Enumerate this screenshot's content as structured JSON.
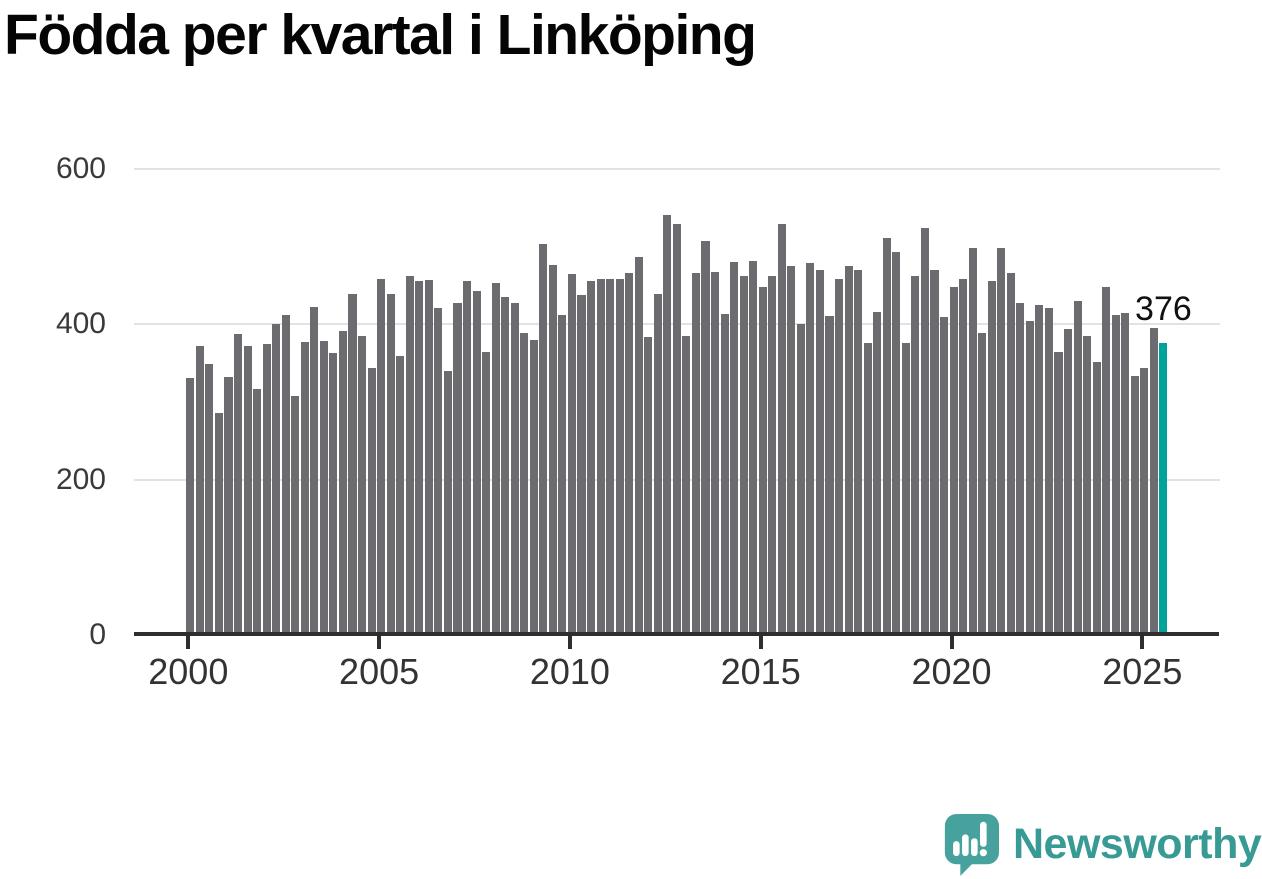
{
  "title": "Födda per kvartal i Linköping",
  "chart_data": {
    "type": "bar",
    "title": "Födda per kvartal i Linköping",
    "xlabel": "",
    "ylabel": "",
    "ylim": [
      0,
      620
    ],
    "grid": "horizontal-lines-at-200-400-600",
    "legend": "none",
    "bar_color": "#6b6b70",
    "highlight_color": "#00a39c",
    "x_tick_labels": [
      "2000",
      "2005",
      "2010",
      "2015",
      "2020",
      "2025"
    ],
    "y_tick_labels": [
      "0",
      "200",
      "400",
      "600"
    ],
    "annotation": {
      "text": "376",
      "quarter": "2025-Q3"
    },
    "series_by_year": [
      {
        "year": 2000,
        "values": [
          331,
          372,
          348,
          286
        ]
      },
      {
        "year": 2001,
        "values": [
          332,
          387,
          372,
          316
        ]
      },
      {
        "year": 2002,
        "values": [
          374,
          400,
          412,
          308
        ]
      },
      {
        "year": 2003,
        "values": [
          377,
          422,
          378,
          363
        ]
      },
      {
        "year": 2004,
        "values": [
          391,
          439,
          384,
          344
        ]
      },
      {
        "year": 2005,
        "values": [
          458,
          438,
          359,
          462
        ]
      },
      {
        "year": 2006,
        "values": [
          455,
          457,
          420,
          339
        ]
      },
      {
        "year": 2007,
        "values": [
          427,
          455,
          443,
          364
        ]
      },
      {
        "year": 2008,
        "values": [
          453,
          435,
          427,
          388
        ]
      },
      {
        "year": 2009,
        "values": [
          380,
          503,
          476,
          412
        ]
      },
      {
        "year": 2010,
        "values": [
          464,
          437,
          455,
          458
        ]
      },
      {
        "year": 2011,
        "values": [
          458,
          458,
          466,
          486
        ]
      },
      {
        "year": 2012,
        "values": [
          383,
          438,
          540,
          529
        ]
      },
      {
        "year": 2013,
        "values": [
          384,
          466,
          507,
          467
        ]
      },
      {
        "year": 2014,
        "values": [
          413,
          480,
          462,
          481
        ]
      },
      {
        "year": 2015,
        "values": [
          447,
          462,
          528,
          475
        ]
      },
      {
        "year": 2016,
        "values": [
          400,
          478,
          470,
          410
        ]
      },
      {
        "year": 2017,
        "values": [
          458,
          475,
          469,
          375
        ]
      },
      {
        "year": 2018,
        "values": [
          415,
          511,
          493,
          375
        ]
      },
      {
        "year": 2019,
        "values": [
          462,
          524,
          469,
          409
        ]
      },
      {
        "year": 2020,
        "values": [
          447,
          458,
          498,
          388
        ]
      },
      {
        "year": 2021,
        "values": [
          455,
          498,
          466,
          427
        ]
      },
      {
        "year": 2022,
        "values": [
          404,
          424,
          420,
          364
        ]
      },
      {
        "year": 2023,
        "values": [
          393,
          429,
          384,
          351
        ]
      },
      {
        "year": 2024,
        "values": [
          447,
          412,
          414,
          333
        ]
      },
      {
        "year": 2025,
        "values": [
          344,
          395,
          376
        ]
      }
    ]
  },
  "branding": {
    "wordmark": "Newsworthy",
    "logo_icon": "speech-bubble-bar-chart-icon",
    "icon_color": "#47a29d",
    "text_color": "#379a94"
  }
}
